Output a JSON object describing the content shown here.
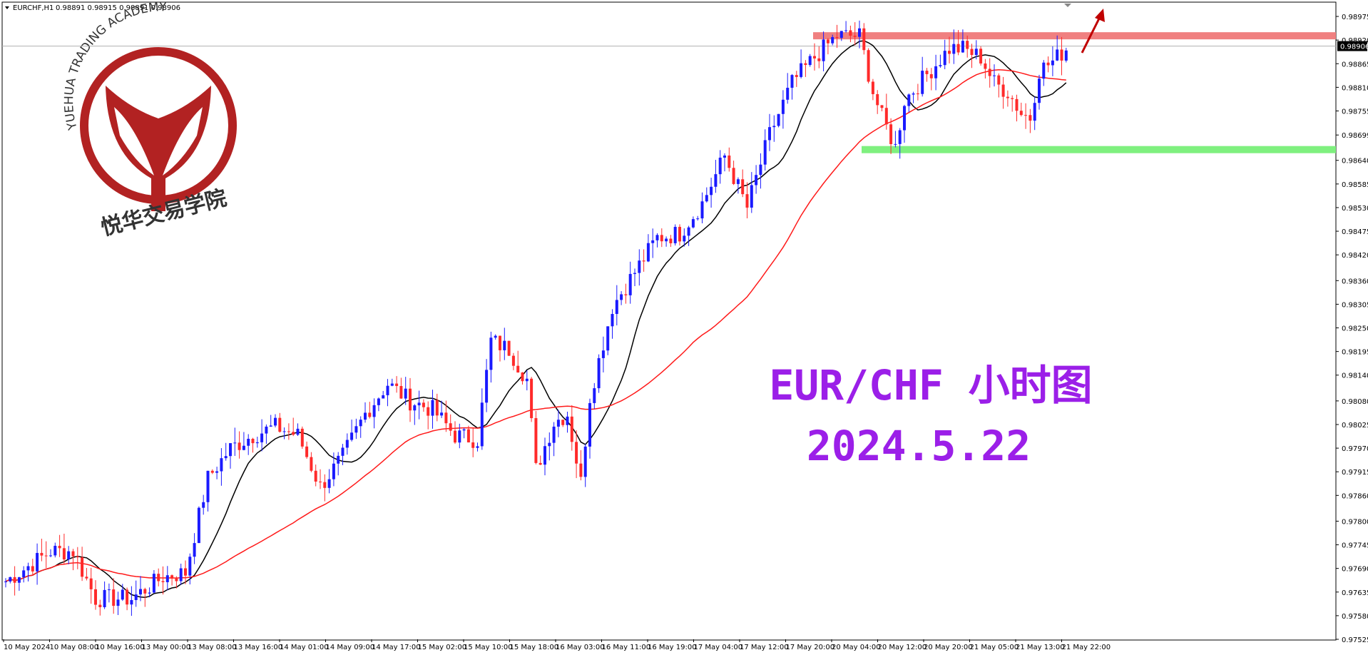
{
  "header": {
    "symbol_label": "EURCHF,H1",
    "ohlc_label": "0.98891 0.98915 0.98891 0.98906"
  },
  "logo": {
    "arc_text": "YUEHUA TRADING ACADEMY",
    "cn_text": "悦华交易学院"
  },
  "overlay": {
    "line1": "EUR/CHF  小时图",
    "line2": "2024.5.22"
  },
  "colors": {
    "bull": "#1a1aff",
    "bear": "#ff2a2a",
    "ma_fast": "#000000",
    "ma_slow": "#ff1a1a",
    "resistance": "#f08080",
    "support": "#7ff07f",
    "arrow": "#c00000",
    "title": "#9b1fe8",
    "logo": "#b22222"
  },
  "chart_data": {
    "type": "candlestick",
    "symbol": "EURCHF",
    "timeframe": "H1",
    "ylim": [
      0.97525,
      0.99
    ],
    "y_ticks": [
      "0.98975",
      "0.98920",
      "0.98865",
      "0.98810",
      "0.98755",
      "0.98699",
      "0.98640",
      "0.98585",
      "0.98530",
      "0.98475",
      "0.98420",
      "0.98360",
      "0.98305",
      "0.98250",
      "0.98195",
      "0.98140",
      "0.98080",
      "0.98025",
      "0.97970",
      "0.97915",
      "0.97860",
      "0.97800",
      "0.97745",
      "0.97690",
      "0.97635",
      "0.97580",
      "0.97525"
    ],
    "x_ticks": [
      "10 May 2024",
      "10 May 08:00",
      "10 May 16:00",
      "13 May 00:00",
      "13 May 08:00",
      "13 May 16:00",
      "14 May 01:00",
      "14 May 09:00",
      "14 May 17:00",
      "15 May 02:00",
      "15 May 10:00",
      "15 May 18:00",
      "16 May 03:00",
      "16 May 11:00",
      "16 May 19:00",
      "17 May 04:00",
      "17 May 12:00",
      "17 May 20:00",
      "20 May 04:00",
      "20 May 12:00",
      "20 May 20:00",
      "21 May 05:00",
      "21 May 13:00",
      "21 May 22:00"
    ],
    "current_price": "0.98906",
    "resistance": 0.9893,
    "support": 0.98665,
    "key_points": [
      [
        0,
        0.9766
      ],
      [
        10,
        0.9773
      ],
      [
        15,
        0.9773
      ],
      [
        20,
        0.9762
      ],
      [
        28,
        0.9762
      ],
      [
        35,
        0.9767
      ],
      [
        40,
        0.9768
      ],
      [
        45,
        0.979
      ],
      [
        50,
        0.9797
      ],
      [
        55,
        0.98
      ],
      [
        60,
        0.9802
      ],
      [
        65,
        0.98
      ],
      [
        70,
        0.9788
      ],
      [
        75,
        0.9795
      ],
      [
        80,
        0.9805
      ],
      [
        85,
        0.9812
      ],
      [
        90,
        0.9808
      ],
      [
        95,
        0.9806
      ],
      [
        100,
        0.98
      ],
      [
        105,
        0.9799
      ],
      [
        108,
        0.9822
      ],
      [
        112,
        0.982
      ],
      [
        116,
        0.9813
      ],
      [
        118,
        0.9792
      ],
      [
        122,
        0.9803
      ],
      [
        125,
        0.9805
      ],
      [
        128,
        0.9789
      ],
      [
        130,
        0.9809
      ],
      [
        135,
        0.983
      ],
      [
        140,
        0.9838
      ],
      [
        145,
        0.9846
      ],
      [
        150,
        0.9847
      ],
      [
        155,
        0.9854
      ],
      [
        160,
        0.9865
      ],
      [
        165,
        0.9853
      ],
      [
        170,
        0.987
      ],
      [
        175,
        0.9882
      ],
      [
        180,
        0.9888
      ],
      [
        185,
        0.9893
      ],
      [
        190,
        0.9893
      ],
      [
        193,
        0.988
      ],
      [
        195,
        0.9874
      ],
      [
        198,
        0.9867
      ],
      [
        200,
        0.9878
      ],
      [
        205,
        0.9884
      ],
      [
        210,
        0.989
      ],
      [
        213,
        0.989
      ],
      [
        217,
        0.9888
      ],
      [
        220,
        0.9882
      ],
      [
        223,
        0.988
      ],
      [
        226,
        0.9875
      ],
      [
        228,
        0.9874
      ],
      [
        230,
        0.9885
      ],
      [
        233,
        0.9887
      ],
      [
        236,
        0.989
      ]
    ]
  }
}
